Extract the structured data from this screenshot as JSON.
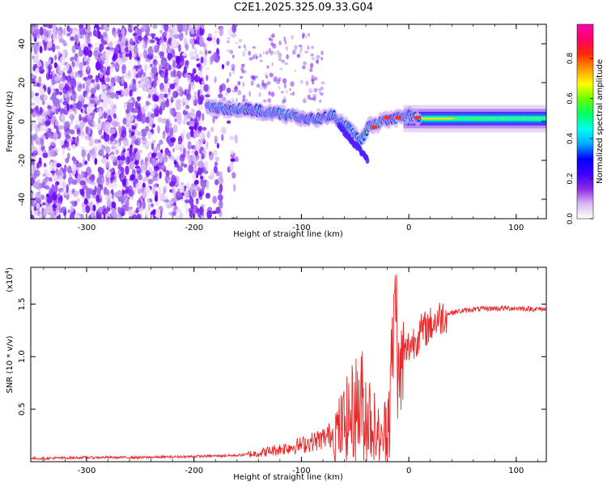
{
  "chart_data": [
    {
      "type": "heatmap",
      "title": "C2E1.2025.325.09.33.G04",
      "xlabel": "Height of straight line (km)",
      "ylabel": "Frequency (Hz)",
      "xlim": [
        -352,
        128
      ],
      "ylim": [
        -50,
        50
      ],
      "xticks": [
        -300,
        -200,
        -100,
        0,
        100
      ],
      "xtick_labels": [
        "-300",
        "-200",
        "-100",
        "0",
        "100"
      ],
      "yticks": [
        -40,
        -20,
        0,
        20,
        40
      ],
      "ytick_labels": [
        "-40",
        "-20",
        "0",
        "20",
        "40"
      ],
      "colorbar": {
        "label": "Normalized spectral amplitude",
        "range": [
          0,
          0.97
        ],
        "ticks": [
          0,
          0.2,
          0.4,
          0.6,
          0.8
        ],
        "tick_labels": [
          "0.0",
          "0.2",
          "0.4",
          "0.6",
          "0.8"
        ],
        "colors": [
          "#ffffff",
          "#d9b8f5",
          "#8a2be2",
          "#3a00ff",
          "#0000ff",
          "#00aaff",
          "#00ffee",
          "#00ff66",
          "#66ff00",
          "#ffff00",
          "#ff9900",
          "#ff2a00",
          "#ff0066",
          "#ff00aa"
        ]
      },
      "ridge": {
        "height_km": [
          -185,
          -170,
          -150,
          -130,
          -110,
          -90,
          -70,
          -55,
          -45,
          -38,
          -30,
          -20,
          -10,
          0,
          10,
          50,
          128
        ],
        "frequency_hz": [
          8,
          6,
          6,
          5,
          3,
          1,
          3,
          -4,
          -10,
          -3,
          -1,
          1,
          2,
          3,
          2,
          1.5,
          1.5
        ]
      }
    },
    {
      "type": "line",
      "xlabel": "Height of straight line (km)",
      "ylabel": "SNR (10 * v/v)",
      "y_scale_label": "(x10",
      "y_scale_exponent": "4",
      "xlim": [
        -352,
        128
      ],
      "ylim": [
        0,
        1.85
      ],
      "xticks": [
        -300,
        -200,
        -100,
        0,
        100
      ],
      "xtick_labels": [
        "-300",
        "-200",
        "-100",
        "0",
        "100"
      ],
      "yticks": [
        0.5,
        1.0,
        1.5
      ],
      "ytick_labels": [
        "0.5",
        "1.0",
        "1.5"
      ],
      "series": [
        {
          "name": "SNR",
          "color": "#e8282a",
          "x": [
            -352,
            -300,
            -250,
            -200,
            -160,
            -140,
            -120,
            -100,
            -80,
            -65,
            -55,
            -45,
            -35,
            -25,
            -18,
            -14,
            -12,
            -10,
            -8,
            -5,
            0,
            5,
            10,
            20,
            30,
            40,
            60,
            80,
            100,
            128
          ],
          "y": [
            0.03,
            0.04,
            0.04,
            0.05,
            0.06,
            0.08,
            0.12,
            0.16,
            0.22,
            0.3,
            0.42,
            0.55,
            0.4,
            0.18,
            0.5,
            1.25,
            1.75,
            0.7,
            0.8,
            1.0,
            1.1,
            1.15,
            1.22,
            1.3,
            1.38,
            1.42,
            1.45,
            1.46,
            1.46,
            1.45
          ]
        }
      ]
    }
  ]
}
